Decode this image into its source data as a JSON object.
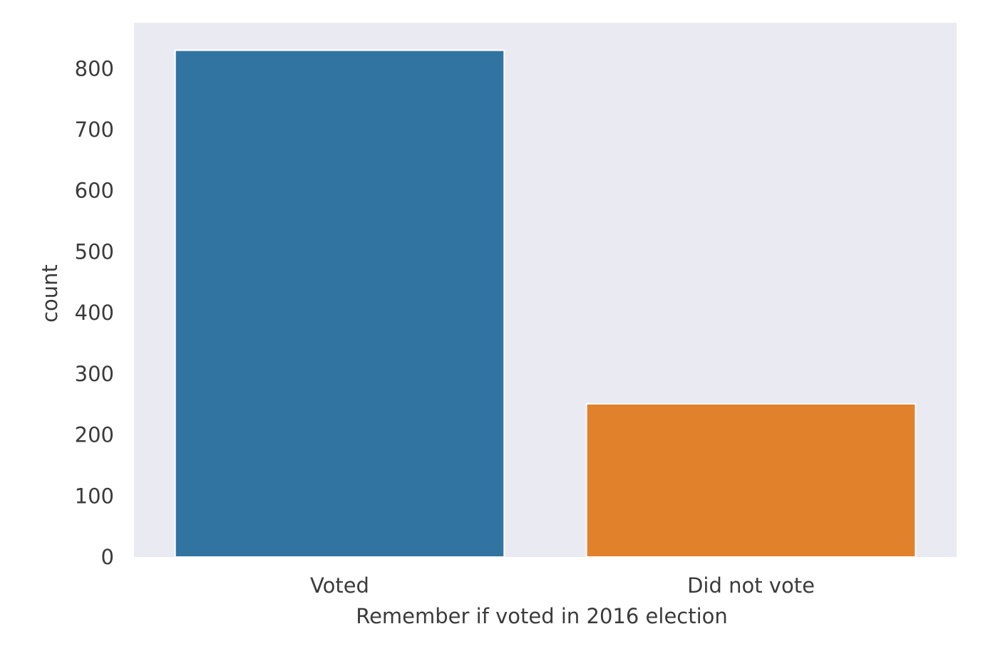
{
  "chart_data": {
    "type": "bar",
    "title": "",
    "xlabel": "Remember if voted in 2016 election",
    "ylabel": "count",
    "categories": [
      "Voted",
      "Did not vote"
    ],
    "values": [
      830,
      251
    ],
    "ylim": [
      0,
      875
    ],
    "yticks": [
      0,
      100,
      200,
      300,
      400,
      500,
      600,
      700,
      800
    ],
    "grid": false,
    "legend": "none",
    "colors": [
      "#3274a1",
      "#e1812c"
    ],
    "background_color": "#eaeaf2"
  }
}
